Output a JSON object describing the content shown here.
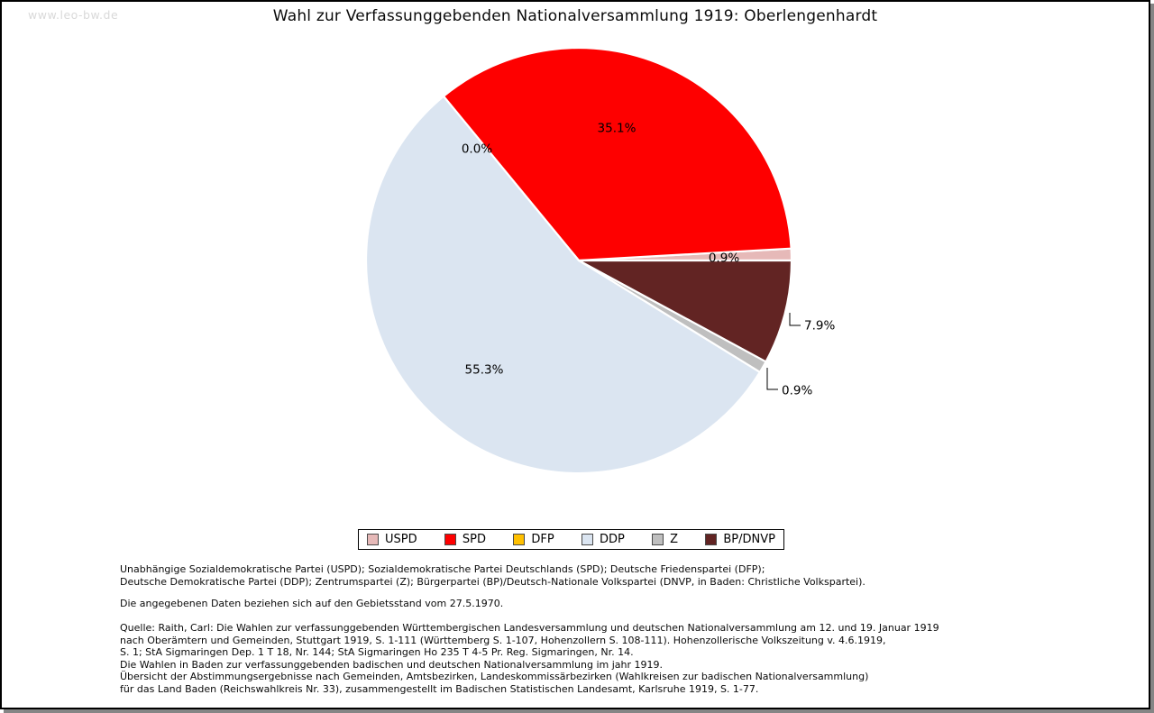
{
  "watermark": "www.leo-bw.de",
  "title": "Wahl zur Verfassunggebenden Nationalversammlung 1919: Oberlengenhardt",
  "chart_data": {
    "type": "pie",
    "title": "Wahl zur Verfassunggebenden Nationalversammlung 1919: Oberlengenhardt",
    "start_angle_deg": 0,
    "direction": "counterclockwise",
    "legend_position": "bottom",
    "series": [
      {
        "name": "USPD",
        "value": 0.9,
        "label": "0.9%",
        "color": "#e6b9b8",
        "label_placement": "inside"
      },
      {
        "name": "SPD",
        "value": 35.1,
        "label": "35.1%",
        "color": "#fe0000",
        "label_placement": "inside"
      },
      {
        "name": "DFP",
        "value": 0.0,
        "label": "0.0%",
        "color": "#ffc000",
        "label_placement": "inside"
      },
      {
        "name": "DDP",
        "value": 55.3,
        "label": "55.3%",
        "color": "#dbe5f1",
        "label_placement": "inside"
      },
      {
        "name": "Z",
        "value": 0.9,
        "label": "0.9%",
        "color": "#bfbfbf",
        "label_placement": "outside"
      },
      {
        "name": "BP/DNVP",
        "value": 7.9,
        "label": "7.9%",
        "color": "#622423",
        "label_placement": "outside"
      }
    ]
  },
  "footer": {
    "parties_lines": [
      "Unabhängige Sozialdemokratische Partei (USPD); Sozialdemokratische Partei Deutschlands (SPD); Deutsche Friedenspartei (DFP);",
      "Deutsche Demokratische Partei (DDP); Zentrumspartei (Z); Bürgerpartei (BP)/Deutsch-Nationale Volkspartei (DNVP, in Baden: Christliche Volkspartei)."
    ],
    "note": "Die angegebenen Daten beziehen sich auf den Gebietsstand vom 27.5.1970.",
    "quelle_lines": [
      "Quelle: Raith, Carl: Die Wahlen zur verfassunggebenden Württembergischen Landesversammlung und deutschen Nationalversammlung am 12. und 19. Januar 1919",
      "nach Oberämtern und Gemeinden, Stuttgart 1919, S. 1-111 (Württemberg S. 1-107, Hohenzollern S. 108-111). Hohenzollerische Volkszeitung v. 4.6.1919,",
      "S. 1; StA Sigmaringen Dep. 1 T 18, Nr. 144; StA Sigmaringen Ho 235 T 4-5 Pr. Reg. Sigmaringen, Nr. 14.",
      "Die Wahlen in Baden zur verfassunggebenden badischen und deutschen Nationalversammlung im jahr 1919.",
      "Übersicht der Abstimmungsergebnisse nach Gemeinden, Amtsbezirken, Landeskommissärbezirken (Wahlkreisen zur badischen Nationalversammlung)",
      "für das Land Baden (Reichswahlkreis Nr. 33), zusammengestellt im Badischen Statistischen Landesamt, Karlsruhe 1919, S. 1-77."
    ]
  }
}
